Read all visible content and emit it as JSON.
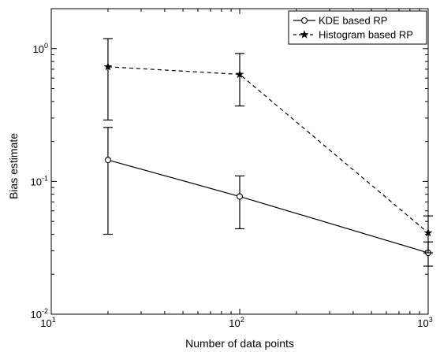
{
  "chart_data": {
    "type": "line",
    "title": "",
    "xlabel": "Number of data points",
    "ylabel": "Bias estimate",
    "xscale": "log",
    "yscale": "log",
    "xlim": [
      10,
      1000
    ],
    "ylim": [
      0.01,
      2
    ],
    "x_ticks": [
      {
        "value": 10,
        "base": "10",
        "exp": "1"
      },
      {
        "value": 100,
        "base": "10",
        "exp": "2"
      },
      {
        "value": 1000,
        "base": "10",
        "exp": "3"
      }
    ],
    "y_ticks": [
      {
        "value": 0.01,
        "base": "10",
        "exp": "-2"
      },
      {
        "value": 0.1,
        "base": "10",
        "exp": "-1"
      },
      {
        "value": 1,
        "base": "10",
        "exp": "0"
      }
    ],
    "grid": false,
    "legend_position": "top-right",
    "series": [
      {
        "name": "KDE based RP",
        "line_style": "solid",
        "marker": "circle",
        "color": "#000000",
        "x": [
          20,
          100,
          1000
        ],
        "y": [
          0.145,
          0.077,
          0.029
        ],
        "y_lower": [
          0.04,
          0.044,
          0.023
        ],
        "y_upper": [
          0.255,
          0.11,
          0.035
        ]
      },
      {
        "name": "Histogram based RP",
        "line_style": "dashed",
        "marker": "star",
        "color": "#000000",
        "x": [
          20,
          100,
          1000
        ],
        "y": [
          0.73,
          0.64,
          0.041
        ],
        "y_lower": [
          0.29,
          0.37,
          0.029
        ],
        "y_upper": [
          1.19,
          0.92,
          0.055
        ]
      }
    ]
  }
}
